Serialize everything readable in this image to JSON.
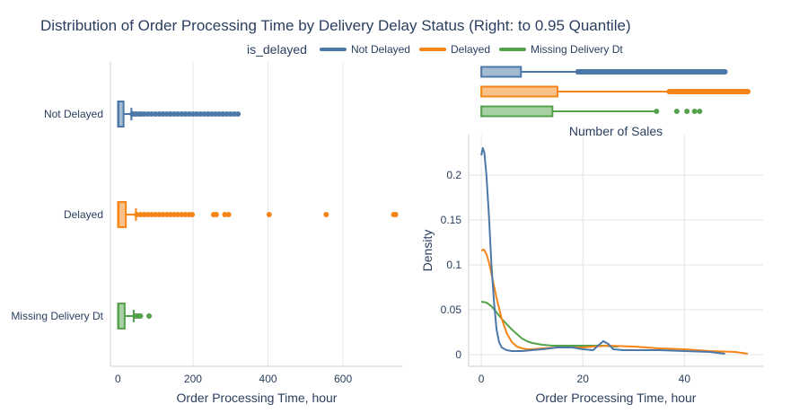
{
  "title": "Distribution of Order Processing Time by Delivery Delay Status (Right: to 0.95 Quantile)",
  "legend": {
    "title": "is_delayed",
    "items": [
      {
        "label": "Not Delayed",
        "color": "#4c78a8"
      },
      {
        "label": "Delayed",
        "color": "#f58518"
      },
      {
        "label": "Missing Delivery Dt",
        "color": "#54a24b"
      }
    ]
  },
  "chart_data": [
    {
      "type": "box",
      "orientation": "horizontal",
      "xlabel": "Order Processing Time, hour",
      "xlim": [
        -20,
        760
      ],
      "xticks": [
        0,
        200,
        400,
        600
      ],
      "categories": [
        "Not Delayed",
        "Delayed",
        "Missing Delivery Dt"
      ],
      "grid": true,
      "series": [
        {
          "name": "Not Delayed",
          "color": "#4c78a8",
          "q1": 0.3,
          "median": 1.5,
          "q3": 15,
          "whisker_high": 36,
          "outliers": [
            38,
            42,
            48,
            55,
            62,
            70,
            80,
            90,
            100,
            110,
            120,
            130,
            140,
            150,
            160,
            170,
            180,
            190,
            200,
            210,
            220,
            230,
            240,
            250,
            260,
            270,
            280,
            290,
            300,
            310,
            320
          ]
        },
        {
          "name": "Delayed",
          "color": "#f58518",
          "q1": 0.3,
          "median": 1.8,
          "q3": 21,
          "whisker_high": 48,
          "outliers": [
            50,
            60,
            70,
            80,
            90,
            100,
            110,
            120,
            130,
            140,
            150,
            160,
            170,
            180,
            190,
            198,
            255,
            262,
            285,
            295,
            403,
            555,
            735,
            740
          ]
        },
        {
          "name": "Missing Delivery Dt",
          "color": "#54a24b",
          "q1": 0.3,
          "median": 1.5,
          "q3": 18,
          "whisker_high": 42,
          "outliers": [
            45,
            48,
            52,
            56,
            60,
            83
          ]
        }
      ]
    },
    {
      "type": "box",
      "orientation": "horizontal",
      "categories": [
        "Not Delayed",
        "Delayed",
        "Missing Delivery Dt"
      ],
      "xlim": [
        -2.5,
        55.5
      ],
      "series": [
        {
          "name": "Not Delayed",
          "color": "#4c78a8",
          "q1": 0,
          "median": 0,
          "q3": 7.8,
          "whisker_high": 19,
          "outlier_range": [
            19,
            48
          ]
        },
        {
          "name": "Delayed",
          "color": "#f58518",
          "q1": 0,
          "median": 0,
          "q3": 15,
          "whisker_high": 37,
          "outlier_range": [
            37,
            52.5
          ]
        },
        {
          "name": "Missing Delivery Dt",
          "color": "#54a24b",
          "q1": 0,
          "median": 0,
          "q3": 14,
          "whisker_high": 34.5,
          "outliers": [
            34.5,
            38.5,
            40.5,
            42,
            43
          ]
        }
      ]
    },
    {
      "type": "line",
      "title": "Number of Sales",
      "xlabel": "Order Processing Time, hour",
      "ylabel": "Density",
      "xlim": [
        -2.5,
        55.5
      ],
      "ylim": [
        -0.013,
        0.245
      ],
      "xticks": [
        0,
        20,
        40
      ],
      "yticks": [
        0,
        0.05,
        0.1,
        0.15,
        0.2
      ],
      "ytick_labels": [
        "0",
        "0.05",
        "0.1",
        "0.15",
        "0.2"
      ],
      "grid": true,
      "series": [
        {
          "name": "Not Delayed",
          "color": "#4c78a8",
          "x": [
            0,
            0.3,
            0.6,
            1,
            1.5,
            2,
            2.5,
            3,
            3.5,
            4,
            5,
            6,
            8,
            10,
            12,
            15,
            18,
            20,
            22,
            23,
            24,
            25,
            26,
            28,
            30,
            35,
            40,
            45,
            48
          ],
          "y": [
            0.222,
            0.23,
            0.225,
            0.2,
            0.155,
            0.1,
            0.058,
            0.028,
            0.014,
            0.008,
            0.005,
            0.004,
            0.004,
            0.005,
            0.006,
            0.008,
            0.008,
            0.006,
            0.005,
            0.01,
            0.015,
            0.012,
            0.006,
            0.005,
            0.005,
            0.005,
            0.004,
            0.003,
            0.001
          ]
        },
        {
          "name": "Delayed",
          "color": "#f58518",
          "x": [
            0,
            0.5,
            1,
            1.5,
            2,
            3,
            4,
            5,
            6,
            7,
            8,
            9,
            10,
            12,
            15,
            18,
            20,
            22,
            25,
            30,
            35,
            40,
            45,
            50,
            52.5
          ],
          "y": [
            0.116,
            0.117,
            0.112,
            0.103,
            0.09,
            0.063,
            0.04,
            0.024,
            0.014,
            0.009,
            0.007,
            0.006,
            0.006,
            0.007,
            0.008,
            0.008,
            0.008,
            0.009,
            0.01,
            0.009,
            0.007,
            0.006,
            0.004,
            0.003,
            0.001
          ]
        },
        {
          "name": "Missing Delivery Dt",
          "color": "#54a24b",
          "x": [
            0,
            1,
            2,
            3,
            4,
            5,
            6,
            7,
            8,
            9,
            10,
            12,
            14,
            16,
            18,
            20,
            22,
            24,
            26,
            27
          ],
          "y": [
            0.059,
            0.058,
            0.054,
            0.047,
            0.04,
            0.034,
            0.028,
            0.023,
            0.018,
            0.015,
            0.013,
            0.011,
            0.01,
            0.01,
            0.01,
            0.01,
            0.01,
            0.01,
            0.009,
            0.009
          ]
        }
      ]
    }
  ]
}
